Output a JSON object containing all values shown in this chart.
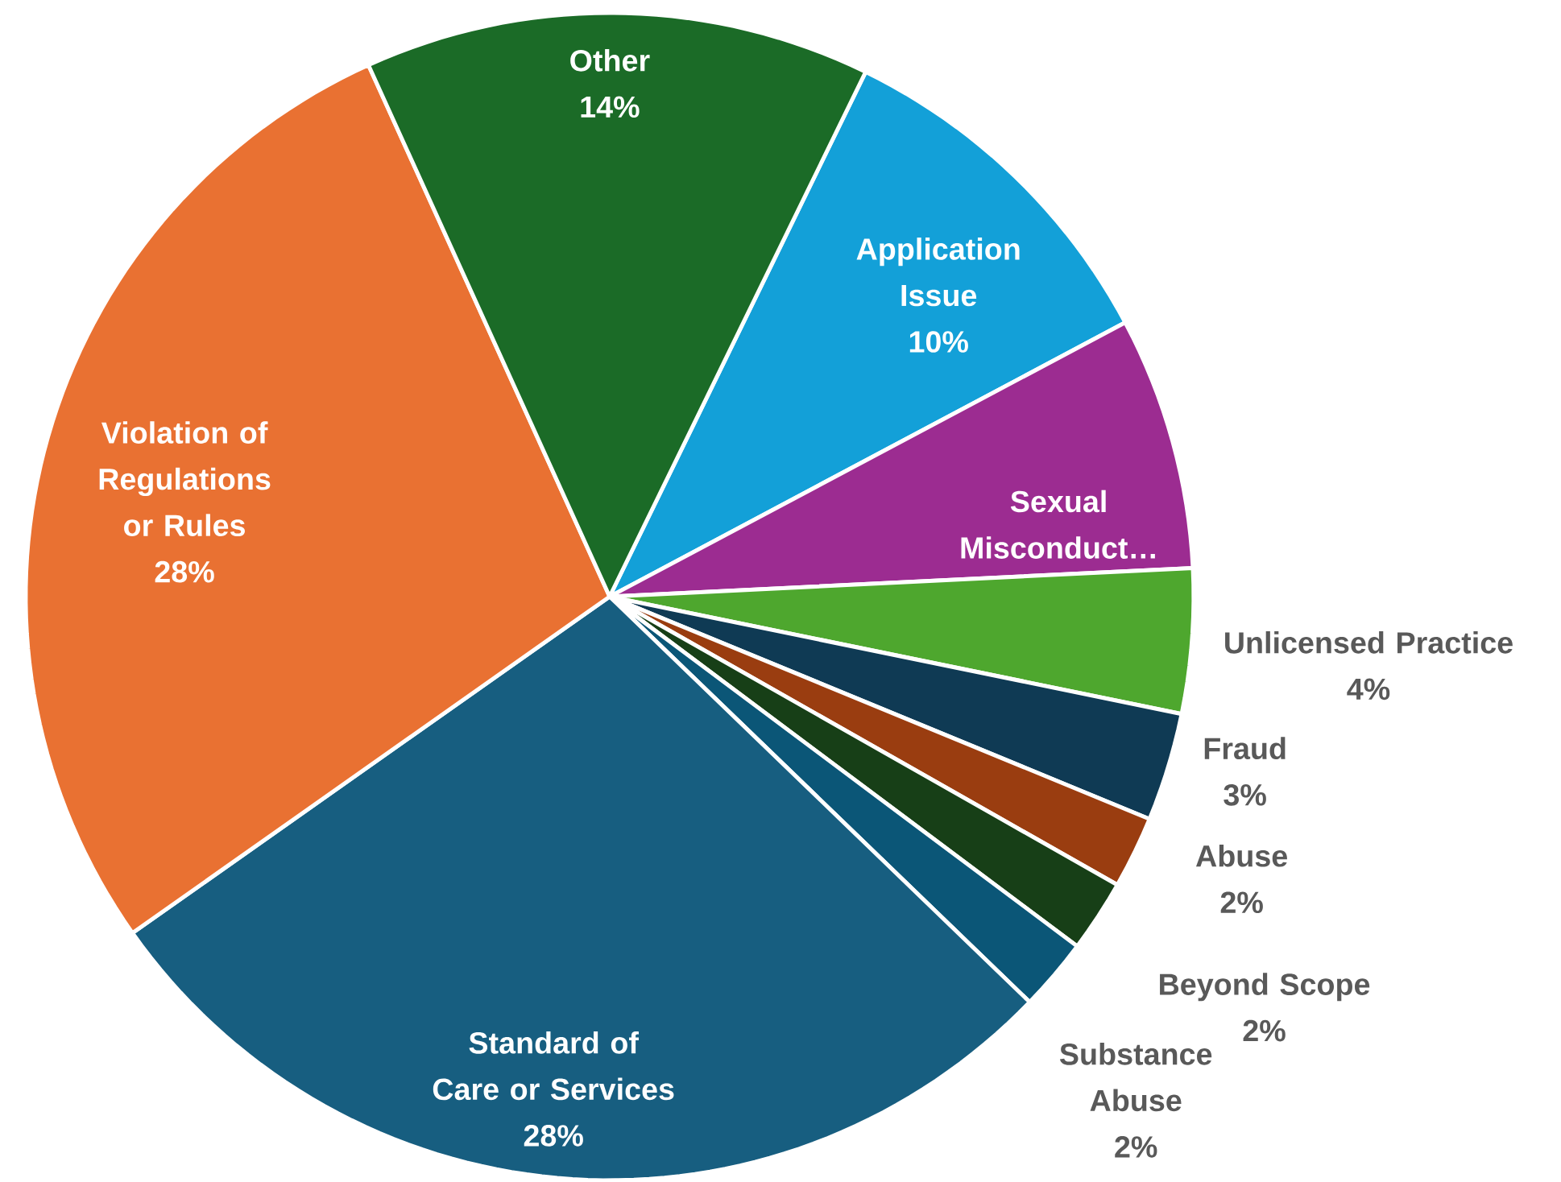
{
  "chart_data": {
    "type": "pie",
    "categories": [
      "Application Issue",
      "Sexual Misconduct…",
      "Unlicensed Practice",
      "Fraud",
      "Abuse",
      "Beyond Scope",
      "Substance Abuse",
      "Standard of Care or Services",
      "Violation of Regulations or Rules",
      "Other"
    ],
    "values": [
      10,
      7,
      4,
      3,
      2,
      2,
      2,
      28,
      28,
      14
    ],
    "value_labels": [
      "10%",
      null,
      "4%",
      "3%",
      "2%",
      "2%",
      "2%",
      "28%",
      "28%",
      "14%"
    ],
    "colors": [
      "#13a0d8",
      "#9c2c91",
      "#4ea72e",
      "#0f3a54",
      "#9a3d10",
      "#173f17",
      "#0b5677",
      "#175e80",
      "#e97132",
      "#1b6b27"
    ]
  }
}
